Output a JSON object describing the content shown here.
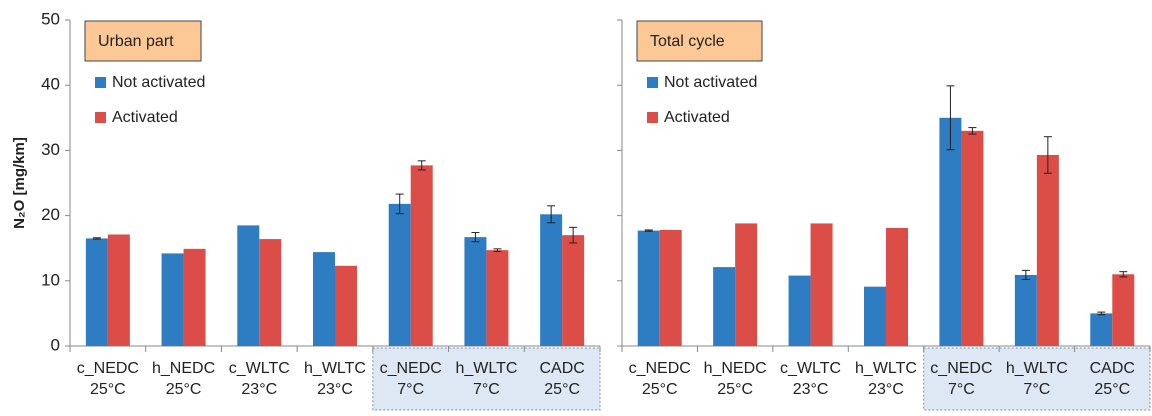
{
  "chart_data": [
    {
      "type": "bar",
      "title": "Urban part",
      "ylabel": "N₂O [mg/km]",
      "categories": [
        [
          "c_NEDC",
          "25°C"
        ],
        [
          "h_NEDC",
          "25°C"
        ],
        [
          "c_WLTC",
          "23°C"
        ],
        [
          "h_WLTC",
          "23°C"
        ],
        [
          "c_NEDC",
          "7°C"
        ],
        [
          "h_WLTC",
          "7°C"
        ],
        [
          "CADC",
          "25°C"
        ]
      ],
      "highlight": [
        4,
        5,
        6
      ],
      "series": [
        {
          "name": "Not activated",
          "color": "#2e7dc2",
          "values": [
            16.5,
            14.2,
            18.5,
            14.4,
            21.8,
            16.7,
            20.2
          ],
          "errors": [
            0.1,
            0,
            0,
            0,
            1.5,
            0.7,
            1.3
          ]
        },
        {
          "name": "Activated",
          "color": "#dc4d47",
          "values": [
            17.1,
            14.9,
            16.4,
            12.3,
            27.7,
            14.7,
            17.0
          ],
          "errors": [
            0,
            0,
            0,
            0,
            0.7,
            0.2,
            1.2
          ]
        }
      ],
      "ylim": [
        0,
        50
      ],
      "yticks": [
        0,
        10,
        20,
        30,
        40,
        50
      ],
      "ytick_labels": true
    },
    {
      "type": "bar",
      "title": "Total cycle",
      "categories": [
        [
          "c_NEDC",
          "25°C"
        ],
        [
          "h_NEDC",
          "25°C"
        ],
        [
          "c_WLTC",
          "23°C"
        ],
        [
          "h_WLTC",
          "23°C"
        ],
        [
          "c_NEDC",
          "7°C"
        ],
        [
          "h_WLTC",
          "7°C"
        ],
        [
          "CADC",
          "25°C"
        ]
      ],
      "highlight": [
        4,
        5,
        6
      ],
      "series": [
        {
          "name": "Not activated",
          "color": "#2e7dc2",
          "values": [
            17.7,
            12.1,
            10.8,
            9.1,
            35.0,
            10.9,
            5.0
          ],
          "errors": [
            0.1,
            0,
            0,
            0,
            4.9,
            0.7,
            0.2
          ]
        },
        {
          "name": "Activated",
          "color": "#dc4d47",
          "values": [
            17.8,
            18.8,
            18.8,
            18.1,
            33.0,
            29.3,
            11.0
          ],
          "errors": [
            0,
            0,
            0,
            0,
            0.5,
            2.8,
            0.4
          ]
        }
      ],
      "ylim": [
        0,
        50
      ],
      "yticks": [
        0,
        10,
        20,
        30,
        40,
        50
      ],
      "ytick_labels": false
    }
  ]
}
